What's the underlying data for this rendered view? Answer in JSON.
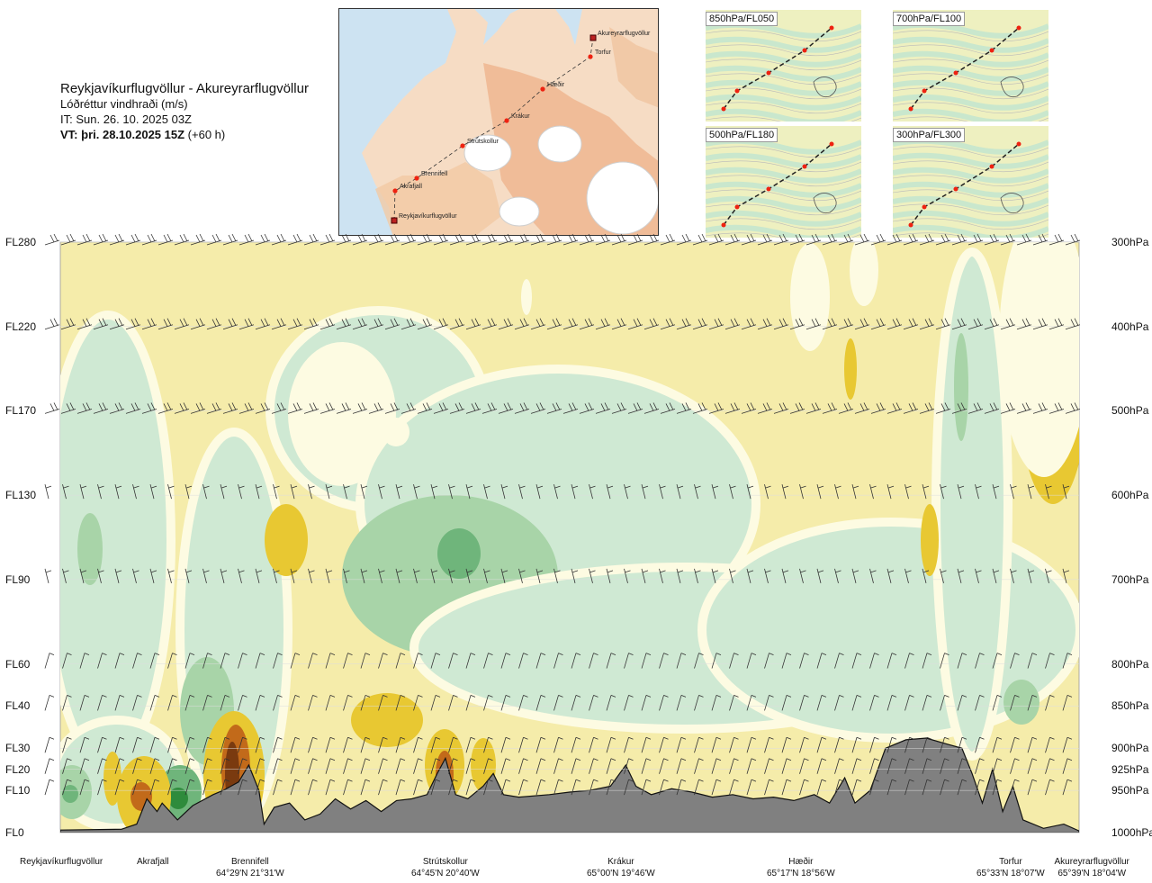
{
  "header": {
    "title": "Reykjavíkurflugvöllur - Akureyrarflugvöllur",
    "subtitle": "Lóðréttur vindhraði (m/s)",
    "issue_time": "IT: Sun. 26. 10. 2025 03Z",
    "valid_lead": "VT:",
    "valid_time": "þri. 28.10.2025 15Z",
    "valid_offset": "(+60 h)"
  },
  "map": {
    "points": [
      "Akureyrarflugvöllur",
      "Torfur",
      "Hæðir",
      "Krákur",
      "Strútskollur",
      "Brennifell",
      "Akrafjall",
      "Reykjavíkurflugvöllur"
    ]
  },
  "insets": [
    {
      "label": "850hPa/FL050"
    },
    {
      "label": "700hPa/FL100"
    },
    {
      "label": "500hPa/FL180"
    },
    {
      "label": "300hPa/FL300"
    }
  ],
  "chart_data": {
    "type": "heatmap",
    "title": "Reykjavíkurflugvöllur - Akureyrarflugvöllur",
    "variable": "Lóðréttur vindhraði (m/s)",
    "levels": [
      {
        "fl": "FL280",
        "hpa": "300hPa",
        "p": 300
      },
      {
        "fl": "FL220",
        "hpa": "400hPa",
        "p": 400
      },
      {
        "fl": "FL170",
        "hpa": "500hPa",
        "p": 500
      },
      {
        "fl": "FL130",
        "hpa": "600hPa",
        "p": 600
      },
      {
        "fl": "FL90",
        "hpa": "700hPa",
        "p": 700
      },
      {
        "fl": "FL60",
        "hpa": "800hPa",
        "p": 800
      },
      {
        "fl": "FL40",
        "hpa": "850hPa",
        "p": 850
      },
      {
        "fl": "FL30",
        "hpa": "900hPa",
        "p": 900
      },
      {
        "fl": "FL20",
        "hpa": "925hPa",
        "p": 925
      },
      {
        "fl": "FL10",
        "hpa": "950hPa",
        "p": 950
      },
      {
        "fl": "FL0",
        "hpa": "1000hPa",
        "p": 1000
      }
    ],
    "x_range": [
      0,
      1
    ],
    "waypoints": [
      {
        "name": "Reykjavíkurflugvöllur",
        "coord": "",
        "x": 0.0
      },
      {
        "name": "Akrafjall",
        "coord": "",
        "x": 0.09
      },
      {
        "name": "Brennifell",
        "coord": "64°29'N 21°31'W",
        "x": 0.186
      },
      {
        "name": "Strútskollur",
        "coord": "64°45'N 20°40'W",
        "x": 0.378
      },
      {
        "name": "Krákur",
        "coord": "65°00'N 19°46'W",
        "x": 0.552
      },
      {
        "name": "Hæðir",
        "coord": "65°17'N 18°56'W",
        "x": 0.729
      },
      {
        "name": "Torfur",
        "coord": "65°33'N 18°07'W",
        "x": 0.93
      },
      {
        "name": "Akureyrarflugvöllur",
        "coord": "65°39'N 18°04'W",
        "x": 1.0
      }
    ],
    "terrain_p": [
      [
        0.0,
        997
      ],
      [
        0.06,
        996
      ],
      [
        0.075,
        990
      ],
      [
        0.085,
        960
      ],
      [
        0.095,
        975
      ],
      [
        0.1,
        965
      ],
      [
        0.115,
        985
      ],
      [
        0.13,
        968
      ],
      [
        0.15,
        955
      ],
      [
        0.16,
        950
      ],
      [
        0.175,
        940
      ],
      [
        0.185,
        920
      ],
      [
        0.195,
        950
      ],
      [
        0.2,
        990
      ],
      [
        0.21,
        970
      ],
      [
        0.225,
        965
      ],
      [
        0.24,
        985
      ],
      [
        0.255,
        978
      ],
      [
        0.27,
        960
      ],
      [
        0.285,
        972
      ],
      [
        0.3,
        962
      ],
      [
        0.315,
        975
      ],
      [
        0.33,
        962
      ],
      [
        0.345,
        960
      ],
      [
        0.36,
        955
      ],
      [
        0.37,
        930
      ],
      [
        0.378,
        912
      ],
      [
        0.388,
        955
      ],
      [
        0.4,
        960
      ],
      [
        0.415,
        945
      ],
      [
        0.425,
        930
      ],
      [
        0.435,
        955
      ],
      [
        0.45,
        958
      ],
      [
        0.48,
        955
      ],
      [
        0.5,
        952
      ],
      [
        0.52,
        950
      ],
      [
        0.54,
        945
      ],
      [
        0.555,
        920
      ],
      [
        0.565,
        945
      ],
      [
        0.58,
        955
      ],
      [
        0.6,
        948
      ],
      [
        0.62,
        952
      ],
      [
        0.64,
        958
      ],
      [
        0.66,
        955
      ],
      [
        0.68,
        960
      ],
      [
        0.7,
        958
      ],
      [
        0.72,
        962
      ],
      [
        0.74,
        955
      ],
      [
        0.755,
        965
      ],
      [
        0.77,
        935
      ],
      [
        0.78,
        965
      ],
      [
        0.795,
        950
      ],
      [
        0.81,
        900
      ],
      [
        0.83,
        890
      ],
      [
        0.85,
        888
      ],
      [
        0.87,
        895
      ],
      [
        0.885,
        900
      ],
      [
        0.895,
        930
      ],
      [
        0.905,
        965
      ],
      [
        0.915,
        925
      ],
      [
        0.925,
        975
      ],
      [
        0.935,
        945
      ],
      [
        0.945,
        985
      ],
      [
        0.965,
        995
      ],
      [
        0.985,
        990
      ],
      [
        1.0,
        998
      ]
    ],
    "contour_levels_ms": [
      -1.0,
      -0.5,
      -0.25,
      -0.1,
      0.1,
      0.25,
      0.5,
      1.0,
      1.5
    ],
    "colors": {
      "strong_down": "#7a3a0f",
      "down": "#c26a1a",
      "moderate_down": "#e8c832",
      "weak_down": "#f5ecaa",
      "neutral": "#fdfbe2",
      "weak_up": "#cfe9d3",
      "moderate_up": "#a8d4a8",
      "up": "#6fb57b",
      "strong_up": "#2e8b3c",
      "terrain": "#808080"
    }
  }
}
